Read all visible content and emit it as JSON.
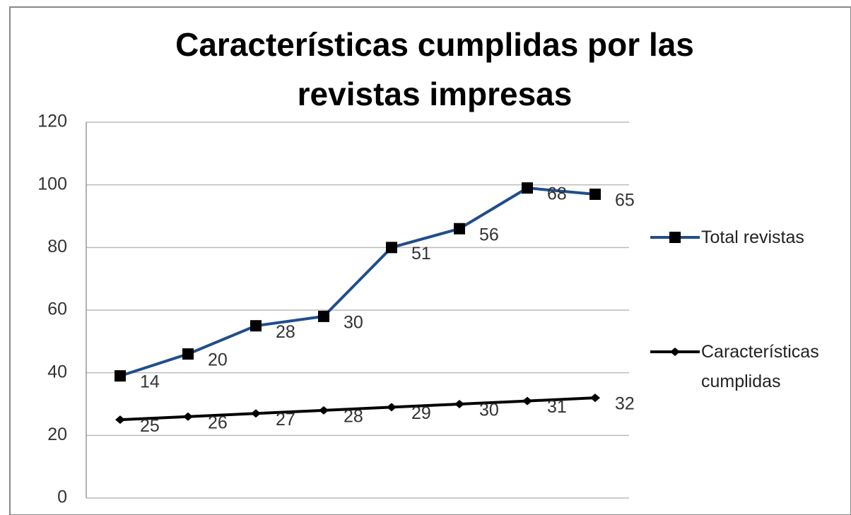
{
  "chart_data": {
    "type": "line",
    "stacked": true,
    "title": "Características cumplidas por las revistas impresas",
    "categories": [
      null,
      null,
      null,
      null,
      null,
      null,
      null,
      null
    ],
    "series": [
      {
        "name": "Total revistas",
        "color": "#1f4e8c",
        "marker": "square",
        "values": [
          14,
          20,
          28,
          30,
          51,
          56,
          68,
          65
        ]
      },
      {
        "name": "Características cumplidas",
        "color": "#000000",
        "marker": "diamond",
        "values": [
          25,
          26,
          27,
          28,
          29,
          30,
          31,
          32
        ]
      }
    ],
    "ylim": [
      0,
      120
    ],
    "yticks": [
      0,
      20,
      40,
      60,
      80,
      100,
      120
    ],
    "grid": true,
    "legend": "right"
  }
}
